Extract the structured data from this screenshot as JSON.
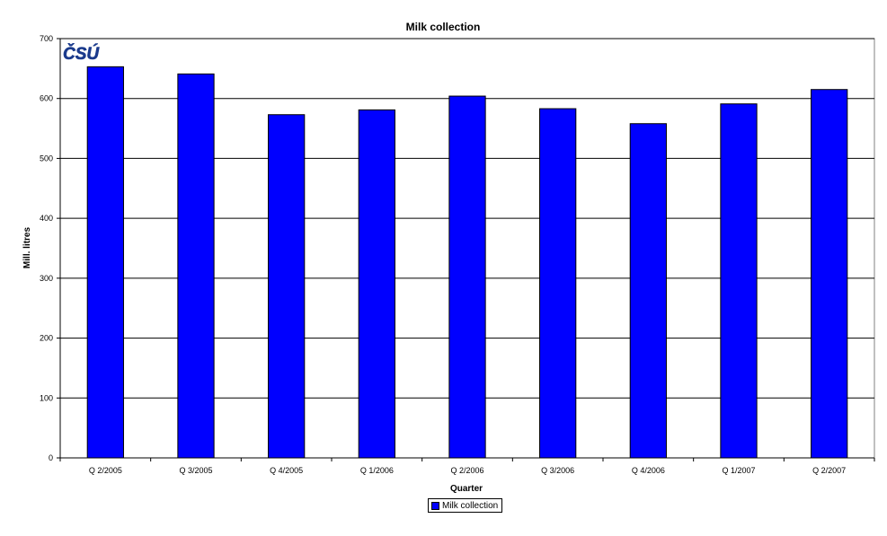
{
  "chart_data": {
    "type": "bar",
    "title": "Milk collection",
    "xlabel": "Quarter",
    "ylabel": "Mill. litres",
    "categories": [
      "Q 2/2005",
      "Q 3/2005",
      "Q 4/2005",
      "Q 1/2006",
      "Q 2/2006",
      "Q 3/2006",
      "Q 4/2006",
      "Q 1/2007",
      "Q 2/2007"
    ],
    "series": [
      {
        "name": "Milk collection",
        "values": [
          653,
          641,
          573,
          581,
          604,
          583,
          558,
          591,
          615
        ]
      }
    ],
    "ylim": [
      0,
      700
    ],
    "yticks": [
      "0",
      "100",
      "200",
      "300",
      "400",
      "500",
      "600",
      "700"
    ],
    "grid": true,
    "legend_position": "bottom",
    "bar_color": "#0000ff",
    "logo_text": "ČSÚ",
    "logo_color": "#1a3a8c"
  }
}
